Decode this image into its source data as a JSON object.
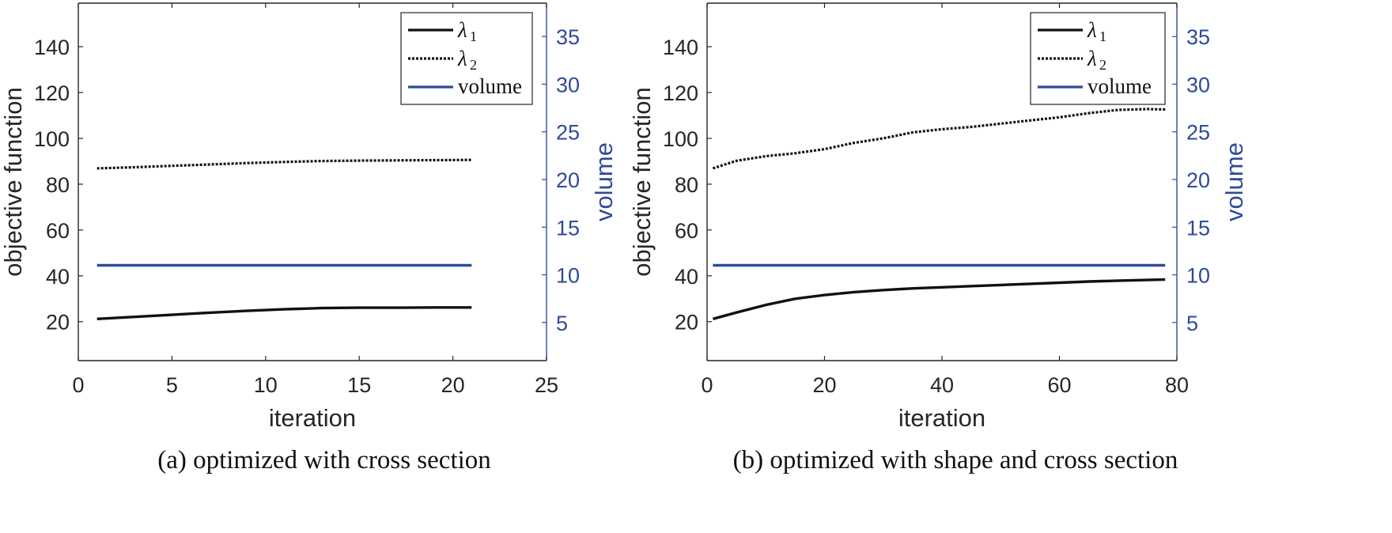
{
  "chart_data": [
    {
      "type": "line",
      "caption": "(a)  optimized with cross section",
      "xlabel": "iteration",
      "ylabel": "objective function",
      "ylabel_right": "volume",
      "xlim": [
        0,
        25
      ],
      "ylim": [
        3,
        159
      ],
      "ylim_right": [
        1,
        38.5
      ],
      "xticks": [
        0,
        5,
        10,
        15,
        20,
        25
      ],
      "yticks": [
        20,
        40,
        60,
        80,
        100,
        120,
        140
      ],
      "yticks_right": [
        5,
        10,
        15,
        20,
        25,
        30,
        35
      ],
      "legend_position": "top-right",
      "colors": {
        "lambda": "#111111",
        "volume": "#2f4a9a",
        "axis_right": "#2f4a9a"
      },
      "series": [
        {
          "name": "λ1",
          "legend_symbol": "λ",
          "legend_sub": "1",
          "axis": "left",
          "style": "solid",
          "x": [
            1,
            3,
            5,
            7,
            9,
            11,
            13,
            15,
            17,
            19,
            21
          ],
          "y": [
            21.2,
            22.1,
            23.0,
            23.9,
            24.7,
            25.4,
            25.9,
            26.1,
            26.1,
            26.2,
            26.2
          ]
        },
        {
          "name": "λ2",
          "legend_symbol": "λ",
          "legend_sub": "2",
          "axis": "left",
          "style": "dotted",
          "x": [
            1,
            3,
            5,
            7,
            9,
            11,
            13,
            15,
            17,
            19,
            21
          ],
          "y": [
            86.9,
            87.4,
            88.0,
            88.6,
            89.2,
            89.7,
            90.1,
            90.3,
            90.4,
            90.5,
            90.6
          ]
        },
        {
          "name": "volume",
          "legend_label": "volume",
          "axis": "right",
          "style": "solid",
          "x": [
            1,
            21
          ],
          "y": [
            11.0,
            11.0
          ]
        }
      ]
    },
    {
      "type": "line",
      "caption": "(b)  optimized with shape and cross section",
      "xlabel": "iteration",
      "ylabel": "objective function",
      "ylabel_right": "volume",
      "xlim": [
        0,
        80
      ],
      "ylim": [
        3,
        159
      ],
      "ylim_right": [
        1,
        38.5
      ],
      "xticks": [
        0,
        20,
        40,
        60,
        80
      ],
      "yticks": [
        20,
        40,
        60,
        80,
        100,
        120,
        140
      ],
      "yticks_right": [
        5,
        10,
        15,
        20,
        25,
        30,
        35
      ],
      "legend_position": "top-right",
      "colors": {
        "lambda": "#111111",
        "volume": "#2f4a9a",
        "axis_right": "#2f4a9a"
      },
      "series": [
        {
          "name": "λ1",
          "legend_symbol": "λ",
          "legend_sub": "1",
          "axis": "left",
          "style": "solid",
          "x": [
            1,
            5,
            10,
            15,
            20,
            25,
            30,
            35,
            40,
            45,
            50,
            55,
            60,
            65,
            70,
            78
          ],
          "y": [
            21.2,
            24.0,
            27.3,
            30.0,
            31.6,
            32.9,
            33.8,
            34.5,
            35.0,
            35.5,
            36.0,
            36.5,
            37.0,
            37.5,
            37.9,
            38.4
          ]
        },
        {
          "name": "λ2",
          "legend_symbol": "λ",
          "legend_sub": "2",
          "axis": "left",
          "style": "dotted",
          "x": [
            1,
            5,
            10,
            15,
            20,
            25,
            30,
            35,
            40,
            45,
            50,
            55,
            60,
            65,
            70,
            75,
            78
          ],
          "y": [
            86.9,
            90.2,
            92.2,
            93.5,
            95.3,
            98.0,
            100.0,
            102.6,
            104.0,
            105.0,
            106.4,
            107.8,
            109.2,
            111.0,
            112.4,
            112.8,
            112.6
          ]
        },
        {
          "name": "volume",
          "legend_label": "volume",
          "axis": "right",
          "style": "solid",
          "x": [
            1,
            78
          ],
          "y": [
            11.0,
            11.0
          ]
        }
      ]
    }
  ]
}
